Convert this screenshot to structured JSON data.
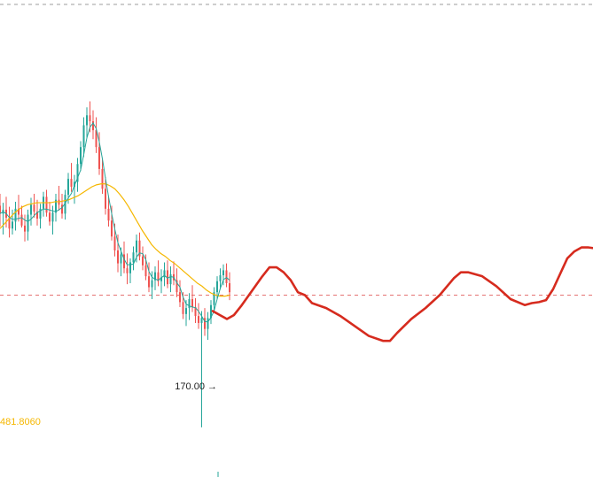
{
  "chart_data": {
    "type": "candlestick",
    "colors": {
      "up": "#26a69a",
      "down": "#ef5350",
      "ma_fast": "#26a69a",
      "ma_slow": "#f5b700",
      "drawing": "#d62b1e",
      "ref_line": "#e57373",
      "top_line": "#9e9e9e",
      "ma_value_label": "#f5b700"
    },
    "ylim": [
      120,
      600
    ],
    "annotations": {
      "low_marker": {
        "text": "170.00 →",
        "value": 170.0
      },
      "ma_value": {
        "text": "481.8060"
      }
    },
    "reference_line": {
      "value": 303,
      "style": "dashed"
    },
    "candles": [
      {
        "o": 393,
        "h": 405,
        "l": 372,
        "c": 385
      },
      {
        "o": 385,
        "h": 396,
        "l": 364,
        "c": 389
      },
      {
        "o": 389,
        "h": 402,
        "l": 371,
        "c": 381
      },
      {
        "o": 381,
        "h": 392,
        "l": 361,
        "c": 370
      },
      {
        "o": 370,
        "h": 389,
        "l": 364,
        "c": 377
      },
      {
        "o": 377,
        "h": 397,
        "l": 368,
        "c": 390
      },
      {
        "o": 390,
        "h": 404,
        "l": 377,
        "c": 384
      },
      {
        "o": 384,
        "h": 393,
        "l": 371,
        "c": 373
      },
      {
        "o": 373,
        "h": 384,
        "l": 357,
        "c": 367
      },
      {
        "o": 367,
        "h": 389,
        "l": 358,
        "c": 384
      },
      {
        "o": 384,
        "h": 401,
        "l": 373,
        "c": 394
      },
      {
        "o": 394,
        "h": 405,
        "l": 381,
        "c": 387
      },
      {
        "o": 387,
        "h": 399,
        "l": 373,
        "c": 380
      },
      {
        "o": 380,
        "h": 395,
        "l": 370,
        "c": 390
      },
      {
        "o": 390,
        "h": 407,
        "l": 382,
        "c": 402
      },
      {
        "o": 402,
        "h": 409,
        "l": 382,
        "c": 386
      },
      {
        "o": 386,
        "h": 397,
        "l": 373,
        "c": 377
      },
      {
        "o": 377,
        "h": 393,
        "l": 364,
        "c": 386
      },
      {
        "o": 386,
        "h": 405,
        "l": 377,
        "c": 399
      },
      {
        "o": 399,
        "h": 413,
        "l": 388,
        "c": 394
      },
      {
        "o": 394,
        "h": 405,
        "l": 380,
        "c": 385
      },
      {
        "o": 385,
        "h": 409,
        "l": 379,
        "c": 404
      },
      {
        "o": 404,
        "h": 426,
        "l": 395,
        "c": 420
      },
      {
        "o": 420,
        "h": 436,
        "l": 407,
        "c": 412
      },
      {
        "o": 412,
        "h": 424,
        "l": 395,
        "c": 417
      },
      {
        "o": 417,
        "h": 441,
        "l": 407,
        "c": 435
      },
      {
        "o": 435,
        "h": 458,
        "l": 428,
        "c": 452
      },
      {
        "o": 452,
        "h": 482,
        "l": 442,
        "c": 474
      },
      {
        "o": 474,
        "h": 492,
        "l": 461,
        "c": 484
      },
      {
        "o": 484,
        "h": 498,
        "l": 467,
        "c": 478
      },
      {
        "o": 478,
        "h": 489,
        "l": 460,
        "c": 469
      },
      {
        "o": 469,
        "h": 482,
        "l": 446,
        "c": 452
      },
      {
        "o": 452,
        "h": 467,
        "l": 424,
        "c": 430
      },
      {
        "o": 430,
        "h": 441,
        "l": 405,
        "c": 410
      },
      {
        "o": 410,
        "h": 422,
        "l": 384,
        "c": 390
      },
      {
        "o": 390,
        "h": 403,
        "l": 372,
        "c": 378
      },
      {
        "o": 378,
        "h": 393,
        "l": 358,
        "c": 362
      },
      {
        "o": 362,
        "h": 375,
        "l": 342,
        "c": 348
      },
      {
        "o": 348,
        "h": 364,
        "l": 326,
        "c": 335
      },
      {
        "o": 335,
        "h": 351,
        "l": 322,
        "c": 344
      },
      {
        "o": 344,
        "h": 357,
        "l": 325,
        "c": 330
      },
      {
        "o": 330,
        "h": 345,
        "l": 314,
        "c": 325
      },
      {
        "o": 325,
        "h": 340,
        "l": 315,
        "c": 336
      },
      {
        "o": 336,
        "h": 352,
        "l": 328,
        "c": 346
      },
      {
        "o": 346,
        "h": 364,
        "l": 336,
        "c": 358
      },
      {
        "o": 358,
        "h": 366,
        "l": 338,
        "c": 342
      },
      {
        "o": 342,
        "h": 352,
        "l": 328,
        "c": 333
      },
      {
        "o": 333,
        "h": 344,
        "l": 318,
        "c": 322
      },
      {
        "o": 322,
        "h": 336,
        "l": 306,
        "c": 311
      },
      {
        "o": 311,
        "h": 327,
        "l": 299,
        "c": 318
      },
      {
        "o": 318,
        "h": 332,
        "l": 308,
        "c": 326
      },
      {
        "o": 326,
        "h": 338,
        "l": 312,
        "c": 317
      },
      {
        "o": 317,
        "h": 329,
        "l": 305,
        "c": 321
      },
      {
        "o": 321,
        "h": 336,
        "l": 312,
        "c": 328
      },
      {
        "o": 328,
        "h": 338,
        "l": 310,
        "c": 314
      },
      {
        "o": 314,
        "h": 332,
        "l": 306,
        "c": 324
      },
      {
        "o": 324,
        "h": 337,
        "l": 313,
        "c": 318
      },
      {
        "o": 318,
        "h": 330,
        "l": 301,
        "c": 306
      },
      {
        "o": 306,
        "h": 318,
        "l": 291,
        "c": 296
      },
      {
        "o": 296,
        "h": 306,
        "l": 279,
        "c": 284
      },
      {
        "o": 284,
        "h": 298,
        "l": 272,
        "c": 290
      },
      {
        "o": 290,
        "h": 305,
        "l": 278,
        "c": 299
      },
      {
        "o": 299,
        "h": 313,
        "l": 286,
        "c": 291
      },
      {
        "o": 291,
        "h": 300,
        "l": 275,
        "c": 282
      },
      {
        "o": 282,
        "h": 295,
        "l": 269,
        "c": 275
      },
      {
        "o": 275,
        "h": 287,
        "l": 170,
        "c": 280
      },
      {
        "o": 280,
        "h": 290,
        "l": 262,
        "c": 269
      },
      {
        "o": 269,
        "h": 286,
        "l": 258,
        "c": 280
      },
      {
        "o": 280,
        "h": 298,
        "l": 274,
        "c": 293
      },
      {
        "o": 293,
        "h": 311,
        "l": 286,
        "c": 306
      },
      {
        "o": 306,
        "h": 322,
        "l": 299,
        "c": 317
      },
      {
        "o": 317,
        "h": 330,
        "l": 309,
        "c": 323
      },
      {
        "o": 323,
        "h": 334,
        "l": 313,
        "c": 328
      },
      {
        "o": 328,
        "h": 335,
        "l": 311,
        "c": 315
      },
      {
        "o": 315,
        "h": 326,
        "l": 298,
        "c": 306
      }
    ],
    "ma_slow_values": [
      370,
      375,
      380,
      385,
      389,
      392,
      394,
      395,
      396,
      396,
      396,
      396,
      397,
      397,
      398,
      399,
      401,
      403,
      406,
      409,
      412,
      414,
      415,
      415,
      413,
      410,
      405,
      399,
      392,
      384,
      376,
      368,
      361,
      354,
      349,
      345,
      342,
      338,
      335,
      331,
      327,
      323,
      319,
      315,
      312,
      308,
      305,
      303,
      302,
      302,
      303
    ],
    "drawing_path": [
      [
        0,
        287
      ],
      [
        1,
        283
      ],
      [
        2,
        279
      ],
      [
        3,
        283
      ],
      [
        4,
        292
      ],
      [
        5,
        302
      ],
      [
        6,
        312
      ],
      [
        7,
        322
      ],
      [
        8,
        331
      ],
      [
        9,
        331
      ],
      [
        10,
        326
      ],
      [
        11,
        318
      ],
      [
        12,
        306
      ],
      [
        13,
        303
      ],
      [
        14,
        295
      ],
      [
        16,
        290
      ],
      [
        18,
        282
      ],
      [
        20,
        272
      ],
      [
        22,
        262
      ],
      [
        24,
        257
      ],
      [
        25,
        257
      ],
      [
        26,
        265
      ],
      [
        28,
        279
      ],
      [
        30,
        290
      ],
      [
        32,
        303
      ],
      [
        34,
        320
      ],
      [
        35,
        326
      ],
      [
        36,
        326
      ],
      [
        38,
        322
      ],
      [
        40,
        312
      ],
      [
        42,
        299
      ],
      [
        44,
        293
      ],
      [
        45,
        295
      ],
      [
        46,
        296
      ],
      [
        47,
        298
      ],
      [
        48,
        309
      ],
      [
        50,
        340
      ],
      [
        51,
        347
      ],
      [
        52,
        351
      ],
      [
        53,
        351
      ],
      [
        54,
        350
      ]
    ]
  }
}
